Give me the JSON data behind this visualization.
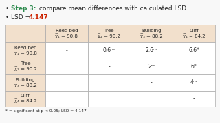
{
  "bullet1_label": "Step 3:",
  "bullet1_label_color": "#2d8a4e",
  "bullet1_rest": " compare mean differences with calculated LSD",
  "bullet2_prefix": "LSD = ",
  "bullet2_value": "4.147",
  "bullet2_value_color": "#cc2200",
  "table_header_bg": "#f2e0cc",
  "table_row_bg": "#ffffff",
  "table_corner_bg": "#ffffff",
  "border_color": "#aaaaaa",
  "col_labels": [
    "Reed bed\nχ̅₁ = 90.8",
    "Tree\nχ̅₂ = 90.2",
    "Building\nχ̅₃ = 88.2",
    "Cliff\nχ̅₄ = 84.2"
  ],
  "row_labels": [
    "Reed bed\nχ̅₁ = 90.8",
    "Tree\nχ̅₂ = 90.2",
    "Building\nχ̅₃ = 88.2",
    "Cliff\nχ̅₄ = 84.2"
  ],
  "cells": [
    [
      "-",
      "0.6ⁿˢ",
      "2.6ⁿˢ",
      "6.6*"
    ],
    [
      "",
      "-",
      "2ⁿˢ",
      "6*"
    ],
    [
      "",
      "",
      "-",
      "4ⁿˢ"
    ],
    [
      "",
      "",
      "",
      "-"
    ]
  ],
  "footnote": "* = significant at p < 0.05; LSD = 4.147",
  "bg_color": "#f8f8f8",
  "text_color": "#222222",
  "font_size_bullets": 6.5,
  "font_size_table": 5.0,
  "font_size_footnote": 4.2
}
